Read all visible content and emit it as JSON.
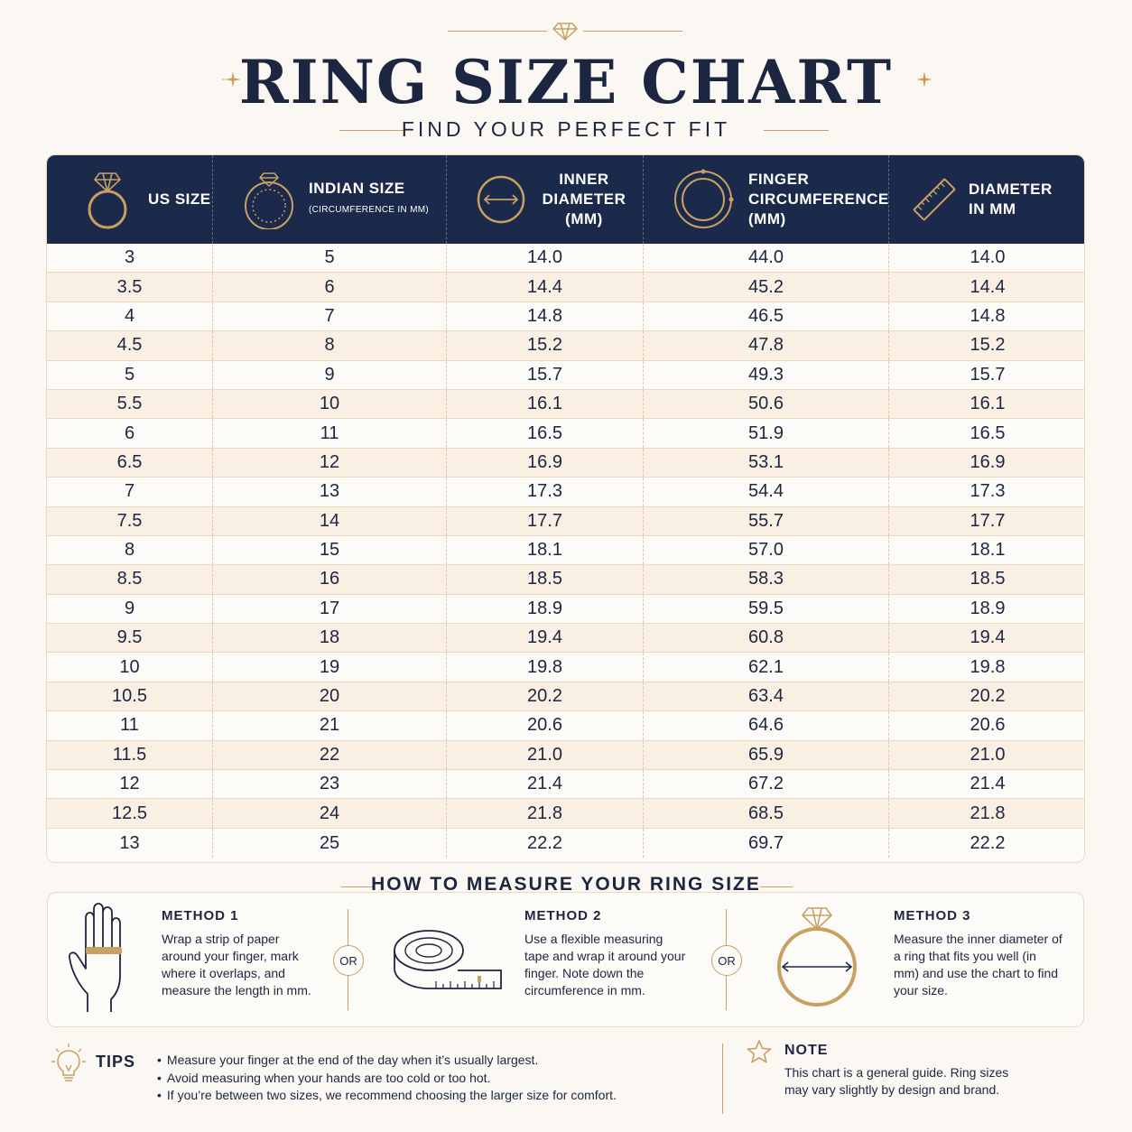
{
  "header": {
    "title": "RING SIZE CHART",
    "subtitle": "FIND YOUR PERFECT FIT"
  },
  "colors": {
    "navy": "#1b2a4a",
    "gold": "#c9a064",
    "cream": "#fbf8f3",
    "stripe": "#f9efe3"
  },
  "table": {
    "columns": [
      {
        "icon": "ring-with-diamond-icon",
        "label": "US SIZE",
        "sub": ""
      },
      {
        "icon": "ring-circumference-icon",
        "label": "INDIAN SIZE",
        "sub": "(CIRCUMFERENCE IN MM)"
      },
      {
        "icon": "diameter-arrow-icon",
        "label": "INNER DIAMETER (MM)",
        "sub": ""
      },
      {
        "icon": "circumference-ring-icon",
        "label": "FINGER CIRCUMFERENCE (MM)",
        "sub": ""
      },
      {
        "icon": "ruler-icon",
        "label": "DIAMETER IN MM",
        "sub": ""
      }
    ],
    "rows": [
      [
        "3",
        "5",
        "14.0",
        "44.0",
        "14.0"
      ],
      [
        "3.5",
        "6",
        "14.4",
        "45.2",
        "14.4"
      ],
      [
        "4",
        "7",
        "14.8",
        "46.5",
        "14.8"
      ],
      [
        "4.5",
        "8",
        "15.2",
        "47.8",
        "15.2"
      ],
      [
        "5",
        "9",
        "15.7",
        "49.3",
        "15.7"
      ],
      [
        "5.5",
        "10",
        "16.1",
        "50.6",
        "16.1"
      ],
      [
        "6",
        "11",
        "16.5",
        "51.9",
        "16.5"
      ],
      [
        "6.5",
        "12",
        "16.9",
        "53.1",
        "16.9"
      ],
      [
        "7",
        "13",
        "17.3",
        "54.4",
        "17.3"
      ],
      [
        "7.5",
        "14",
        "17.7",
        "55.7",
        "17.7"
      ],
      [
        "8",
        "15",
        "18.1",
        "57.0",
        "18.1"
      ],
      [
        "8.5",
        "16",
        "18.5",
        "58.3",
        "18.5"
      ],
      [
        "9",
        "17",
        "18.9",
        "59.5",
        "18.9"
      ],
      [
        "9.5",
        "18",
        "19.4",
        "60.8",
        "19.4"
      ],
      [
        "10",
        "19",
        "19.8",
        "62.1",
        "19.8"
      ],
      [
        "10.5",
        "20",
        "20.2",
        "63.4",
        "20.2"
      ],
      [
        "11",
        "21",
        "20.6",
        "64.6",
        "20.6"
      ],
      [
        "11.5",
        "22",
        "21.0",
        "65.9",
        "21.0"
      ],
      [
        "12",
        "23",
        "21.4",
        "67.2",
        "21.4"
      ],
      [
        "12.5",
        "24",
        "21.8",
        "68.5",
        "21.8"
      ],
      [
        "13",
        "25",
        "22.2",
        "69.7",
        "22.2"
      ]
    ]
  },
  "how": {
    "title": "HOW TO MEASURE YOUR RING SIZE",
    "or_label": "OR",
    "methods": [
      {
        "icon": "hand-with-paper-strip-icon",
        "title": "METHOD 1",
        "text": "Wrap a strip of paper around your finger, mark where it overlaps, and measure the length in mm."
      },
      {
        "icon": "measuring-tape-icon",
        "title": "METHOD 2",
        "text": "Use a flexible measuring tape and wrap it around your finger. Note down the circumference in mm."
      },
      {
        "icon": "ring-diameter-icon",
        "title": "METHOD 3",
        "text": "Measure the inner diameter of a ring that fits you well (in mm) and use the chart to find your size."
      }
    ]
  },
  "tips": {
    "title": "TIPS",
    "icon": "lightbulb-icon",
    "items": [
      "Measure your finger at the end of the day when it’s usually largest.",
      "Avoid measuring when your hands are too cold or too hot.",
      "If you’re between two sizes, we recommend choosing the larger size for comfort."
    ]
  },
  "note": {
    "title": "NOTE",
    "icon": "star-icon",
    "text": "This chart is a general guide. Ring sizes may vary slightly by design and brand."
  }
}
